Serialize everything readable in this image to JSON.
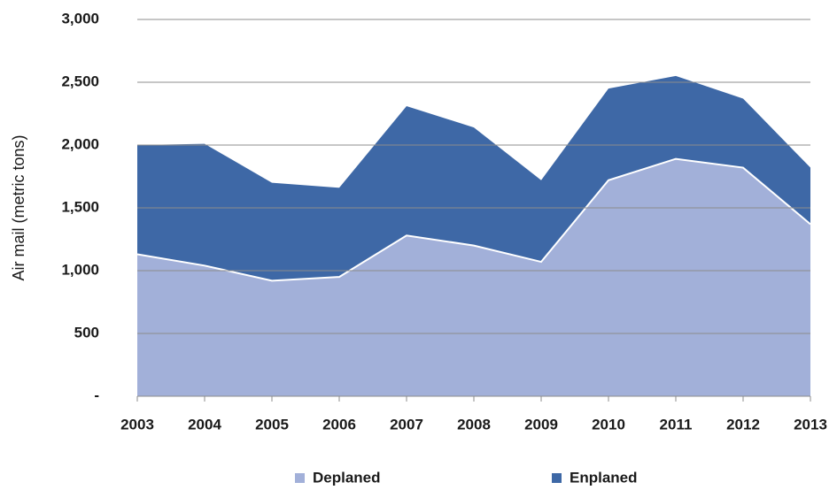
{
  "chart_data": {
    "type": "stacked_area",
    "y_label": "Air mail (metric tons)",
    "categories": [
      "2003",
      "2004",
      "2005",
      "2006",
      "2007",
      "2008",
      "2009",
      "2010",
      "2011",
      "2012",
      "2013"
    ],
    "series": [
      {
        "name": "Deplaned",
        "color": "#a2b0d9",
        "values": [
          1130,
          1040,
          920,
          950,
          1280,
          1200,
          1070,
          1720,
          1890,
          1820,
          1370
        ]
      },
      {
        "name": "Enplaned",
        "color": "#3e68a6",
        "values": [
          870,
          970,
          780,
          710,
          1030,
          940,
          650,
          730,
          660,
          550,
          450
        ]
      }
    ],
    "ylim": [
      0,
      3000
    ],
    "yticks": [
      {
        "value": 0,
        "label": "-"
      },
      500,
      {
        "value": 1000,
        "label": "1,000"
      },
      {
        "value": 1500,
        "label": "1,500"
      },
      {
        "value": 2000,
        "label": "2,000"
      },
      {
        "value": 2500,
        "label": "2,500"
      },
      {
        "value": 3000,
        "label": "3,000"
      }
    ],
    "grid": true,
    "legend": "bottom"
  }
}
